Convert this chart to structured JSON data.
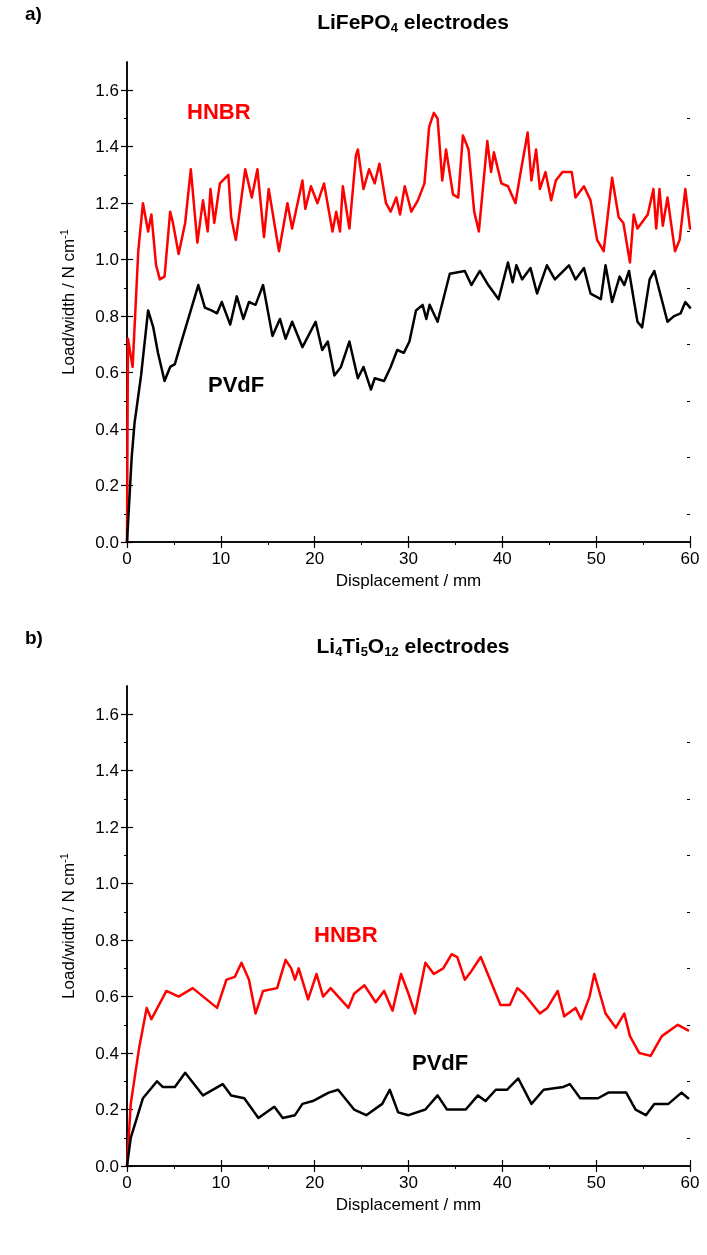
{
  "chart_data": [
    {
      "type": "line",
      "title": "LiFePO$_{4}$ electrodes",
      "annotations": [
        "a)"
      ],
      "xlabel": "Displacement / mm",
      "ylabel": "Load/width / N cm$^{-1}$",
      "xlim": [
        0,
        60
      ],
      "xticks": [
        0,
        10,
        20,
        30,
        40,
        50,
        60
      ],
      "ylim": [
        0,
        1.7
      ],
      "yticks": [
        {
          "value": 0,
          "label": "0.0"
        },
        {
          "value": 0.2,
          "label": "0.2"
        },
        {
          "value": 0.4,
          "label": "0.4"
        },
        {
          "value": 0.6,
          "label": "0.6"
        },
        {
          "value": 0.8,
          "label": "0.8"
        },
        {
          "value": 1.0,
          "label": "1.0"
        },
        {
          "value": 1.2,
          "label": "1.2"
        },
        {
          "value": 1.4,
          "label": "1.4"
        },
        {
          "value": 1.6,
          "label": "1.6"
        }
      ],
      "series": [
        {
          "name": "HNBR",
          "color": "#ff0000",
          "x": [
            0,
            0.1,
            0.6,
            1.2,
            1.7,
            2.25,
            2.6,
            3.1,
            3.5,
            4.0,
            4.6,
            4.9,
            5.5,
            6.2,
            6.8,
            7.5,
            8.1,
            8.6,
            8.9,
            9.3,
            9.9,
            10.8,
            11.1,
            11.6,
            12.6,
            13.3,
            13.9,
            14.6,
            15.1,
            16.2,
            17.1,
            17.6,
            18.7,
            19.0,
            19.6,
            20.3,
            21.0,
            21.9,
            22.3,
            22.7,
            23.0,
            23.7,
            24.4,
            24.6,
            25.2,
            25.8,
            26.4,
            26.9,
            27.6,
            28.1,
            28.7,
            29.1,
            29.6,
            30.3,
            31.0,
            31.7,
            32.2,
            32.7,
            33.1,
            33.6,
            34.0,
            34.75,
            35.3,
            35.8,
            36.4,
            37.0,
            37.5,
            38.4,
            38.8,
            39.1,
            39.9,
            40.6,
            41.4,
            41.9,
            42.7,
            43.1,
            43.6,
            44.0,
            44.6,
            45.2,
            45.7,
            46.4,
            47.4,
            47.8,
            48.7,
            49.4,
            50.1,
            50.8,
            51.7,
            52.4,
            52.9,
            53.6,
            54.0,
            54.4,
            55.5,
            56.1,
            56.4,
            56.75,
            57.1,
            57.6,
            58.4,
            58.9,
            59.5,
            60
          ],
          "values": [
            0,
            0.72,
            0.62,
            1.03,
            1.2,
            1.1,
            1.16,
            0.98,
            0.93,
            0.94,
            1.17,
            1.13,
            1.02,
            1.13,
            1.32,
            1.06,
            1.21,
            1.1,
            1.25,
            1.13,
            1.27,
            1.3,
            1.15,
            1.07,
            1.32,
            1.22,
            1.32,
            1.08,
            1.25,
            1.03,
            1.2,
            1.11,
            1.28,
            1.18,
            1.26,
            1.2,
            1.27,
            1.1,
            1.17,
            1.1,
            1.26,
            1.11,
            1.37,
            1.39,
            1.25,
            1.32,
            1.27,
            1.34,
            1.2,
            1.17,
            1.22,
            1.16,
            1.26,
            1.17,
            1.21,
            1.27,
            1.47,
            1.52,
            1.5,
            1.28,
            1.39,
            1.23,
            1.22,
            1.44,
            1.39,
            1.17,
            1.1,
            1.42,
            1.31,
            1.38,
            1.27,
            1.26,
            1.2,
            1.3,
            1.45,
            1.28,
            1.39,
            1.25,
            1.31,
            1.21,
            1.28,
            1.31,
            1.31,
            1.22,
            1.26,
            1.21,
            1.07,
            1.03,
            1.29,
            1.15,
            1.13,
            0.99,
            1.16,
            1.11,
            1.16,
            1.25,
            1.11,
            1.25,
            1.12,
            1.22,
            1.03,
            1.07,
            1.25,
            1.11
          ]
        },
        {
          "name": "PVdF",
          "color": "#000000",
          "x": [
            0,
            0.5,
            0.8,
            1.5,
            2.25,
            2.8,
            3.3,
            4.0,
            4.6,
            5.1,
            5.8,
            6.7,
            7.6,
            8.3,
            9.0,
            9.6,
            10.1,
            11.0,
            11.7,
            12.4,
            13.0,
            13.7,
            14.5,
            15.5,
            16.3,
            16.9,
            17.6,
            18.7,
            20.1,
            20.8,
            21.4,
            22.1,
            22.8,
            23.7,
            24.6,
            25.2,
            26.0,
            26.4,
            27.4,
            28.1,
            28.8,
            29.5,
            30.1,
            30.8,
            31.5,
            31.9,
            32.25,
            33.1,
            34.4,
            36.0,
            36.7,
            37.6,
            38.5,
            39.6,
            40.6,
            41.1,
            41.5,
            42.1,
            43.0,
            43.7,
            44.75,
            45.6,
            47.1,
            47.8,
            48.7,
            49.4,
            50.5,
            51.0,
            51.7,
            52.5,
            53.0,
            53.5,
            54.4,
            54.9,
            55.7,
            56.2,
            57.6,
            58.3,
            59.0,
            59.5,
            60
          ],
          "values": [
            0,
            0.3,
            0.42,
            0.59,
            0.82,
            0.76,
            0.67,
            0.57,
            0.62,
            0.63,
            0.71,
            0.81,
            0.91,
            0.83,
            0.82,
            0.81,
            0.85,
            0.77,
            0.87,
            0.79,
            0.85,
            0.84,
            0.91,
            0.73,
            0.79,
            0.72,
            0.78,
            0.69,
            0.78,
            0.68,
            0.71,
            0.59,
            0.62,
            0.71,
            0.58,
            0.62,
            0.54,
            0.58,
            0.57,
            0.62,
            0.68,
            0.67,
            0.71,
            0.82,
            0.84,
            0.79,
            0.84,
            0.78,
            0.95,
            0.96,
            0.91,
            0.96,
            0.91,
            0.86,
            0.99,
            0.92,
            0.98,
            0.93,
            0.97,
            0.88,
            0.98,
            0.93,
            0.98,
            0.93,
            0.97,
            0.88,
            0.86,
            0.98,
            0.85,
            0.94,
            0.91,
            0.96,
            0.78,
            0.76,
            0.93,
            0.96,
            0.78,
            0.8,
            0.81,
            0.85,
            0.83
          ]
        }
      ]
    },
    {
      "type": "line",
      "title": "Li$_{4}$Ti$_{5}$O$_{12}$ electrodes",
      "annotations": [
        "b)"
      ],
      "xlabel": "Displacement / mm",
      "ylabel": "Load/width / N cm$^{-1}$",
      "xlim": [
        0,
        60
      ],
      "xticks": [
        0,
        10,
        20,
        30,
        40,
        50,
        60
      ],
      "ylim": [
        0,
        1.7
      ],
      "yticks": [
        {
          "value": 0,
          "label": "0.0"
        },
        {
          "value": 0.2,
          "label": "0.2"
        },
        {
          "value": 0.4,
          "label": "0.4"
        },
        {
          "value": 0.6,
          "label": "0.6"
        },
        {
          "value": 0.8,
          "label": "0.8"
        },
        {
          "value": 1.0,
          "label": "1.0"
        },
        {
          "value": 1.2,
          "label": "1.2"
        },
        {
          "value": 1.4,
          "label": "1.4"
        },
        {
          "value": 1.6,
          "label": "1.6"
        }
      ],
      "series": [
        {
          "name": "HNBR",
          "color": "#ff0000",
          "x": [
            0,
            0.4,
            1.3,
            2.1,
            2.6,
            4.2,
            5.5,
            7.0,
            9.6,
            10.6,
            11.5,
            12.2,
            13.0,
            13.7,
            14.5,
            16.0,
            16.9,
            17.5,
            17.9,
            18.3,
            19.3,
            20.2,
            20.9,
            21.7,
            23.6,
            24.2,
            25.3,
            26.5,
            27.4,
            28.3,
            29.2,
            30.0,
            30.7,
            31.8,
            32.7,
            33.7,
            34.6,
            35.2,
            36.0,
            36.7,
            37.7,
            38.7,
            39.8,
            40.8,
            41.6,
            42.3,
            44.0,
            44.8,
            45.9,
            46.6,
            47.8,
            48.4,
            49.3,
            49.8,
            51.0,
            52.1,
            53.0,
            53.6,
            54.6,
            55.8,
            57.0,
            58.7,
            59.8
          ],
          "values": [
            0,
            0.22,
            0.42,
            0.56,
            0.52,
            0.62,
            0.6,
            0.63,
            0.56,
            0.66,
            0.67,
            0.72,
            0.66,
            0.54,
            0.62,
            0.63,
            0.73,
            0.7,
            0.66,
            0.7,
            0.59,
            0.68,
            0.6,
            0.63,
            0.56,
            0.61,
            0.64,
            0.58,
            0.62,
            0.55,
            0.68,
            0.61,
            0.54,
            0.72,
            0.68,
            0.7,
            0.75,
            0.74,
            0.66,
            0.69,
            0.74,
            0.66,
            0.57,
            0.57,
            0.63,
            0.61,
            0.54,
            0.56,
            0.62,
            0.53,
            0.56,
            0.52,
            0.6,
            0.68,
            0.54,
            0.49,
            0.54,
            0.46,
            0.4,
            0.39,
            0.46,
            0.5,
            0.48
          ]
        },
        {
          "name": "PVdF",
          "color": "#000000",
          "x": [
            0,
            0.4,
            1.7,
            3.2,
            3.8,
            5.1,
            6.2,
            8.1,
            10.2,
            11.1,
            12.5,
            14.0,
            15.7,
            16.6,
            17.9,
            18.7,
            19.8,
            21.5,
            22.5,
            24.2,
            25.5,
            27.2,
            28.0,
            28.9,
            30.0,
            31.8,
            33.1,
            34.1,
            36.1,
            37.4,
            38.2,
            39.3,
            40.5,
            41.7,
            43.1,
            44.4,
            46.5,
            47.2,
            48.3,
            50.2,
            51.3,
            53.2,
            54.2,
            55.3,
            56.2,
            57.7,
            59.1,
            59.8
          ],
          "values": [
            0,
            0.1,
            0.24,
            0.3,
            0.28,
            0.28,
            0.33,
            0.25,
            0.29,
            0.25,
            0.24,
            0.17,
            0.21,
            0.17,
            0.18,
            0.22,
            0.23,
            0.26,
            0.27,
            0.2,
            0.18,
            0.22,
            0.27,
            0.19,
            0.18,
            0.2,
            0.25,
            0.2,
            0.2,
            0.25,
            0.23,
            0.27,
            0.27,
            0.31,
            0.22,
            0.27,
            0.28,
            0.29,
            0.24,
            0.24,
            0.26,
            0.26,
            0.2,
            0.18,
            0.22,
            0.22,
            0.26,
            0.24
          ]
        }
      ]
    }
  ]
}
